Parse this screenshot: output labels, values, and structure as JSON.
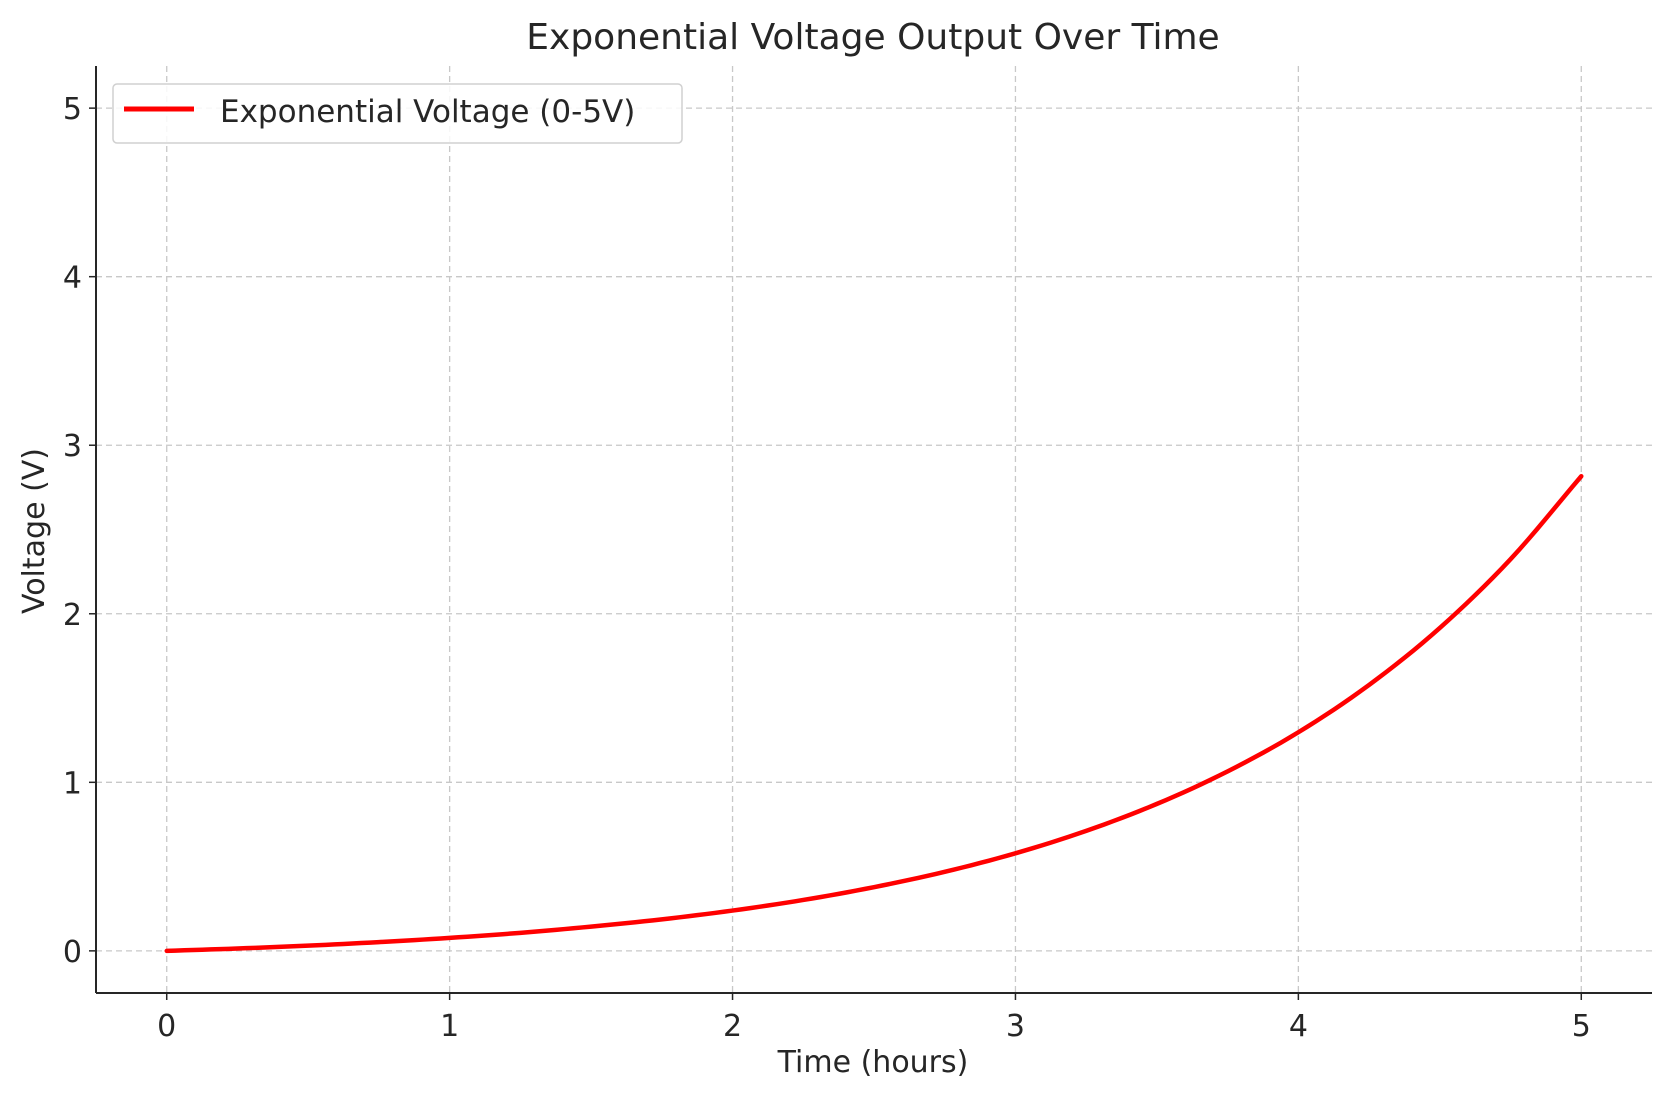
{
  "chart_data": {
    "type": "line",
    "title": "Exponential Voltage Output Over Time",
    "xlabel": "Time (hours)",
    "ylabel": "Voltage (V)",
    "xlim": [
      -0.25,
      5.25
    ],
    "ylim": [
      -0.25,
      5.25
    ],
    "x_ticks": [
      0,
      1,
      2,
      3,
      4,
      5
    ],
    "y_ticks": [
      0,
      1,
      2,
      3,
      4,
      5
    ],
    "grid": true,
    "legend": {
      "placement": "top-left"
    },
    "series": [
      {
        "name": "Exponential Voltage (0-5V)",
        "color": "#ff0000",
        "x": [
          0,
          0.25,
          0.5,
          0.75,
          1,
          1.25,
          1.5,
          1.75,
          2,
          2.25,
          2.5,
          2.75,
          3,
          3.25,
          3.5,
          3.75,
          4,
          4.25,
          4.5,
          4.75,
          5
        ],
        "y": [
          0,
          0.014,
          0.031,
          0.052,
          0.077,
          0.107,
          0.144,
          0.187,
          0.239,
          0.302,
          0.378,
          0.469,
          0.579,
          0.712,
          0.872,
          1.065,
          1.297,
          1.578,
          1.916,
          2.324,
          2.816
        ]
      }
    ]
  }
}
